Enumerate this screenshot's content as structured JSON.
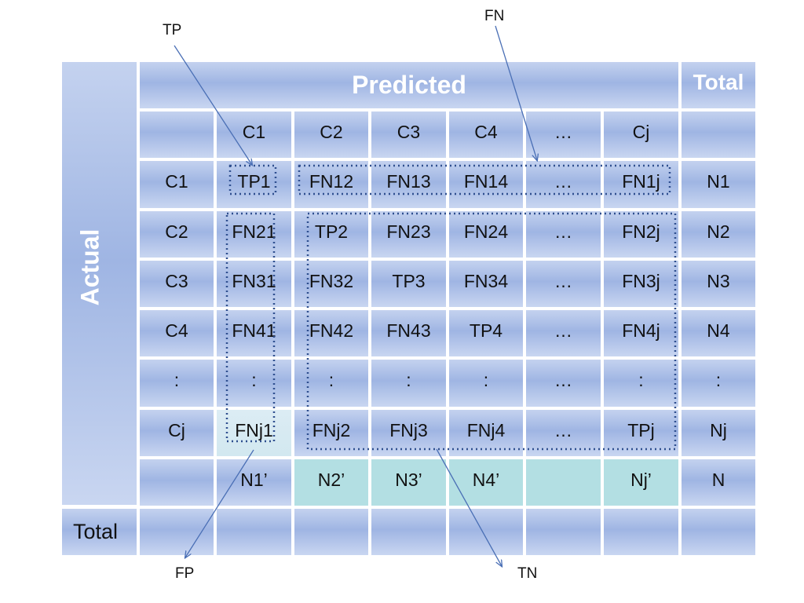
{
  "headers": {
    "predicted": "Predicted",
    "actual": "Actual",
    "total_col": "Total",
    "total_row": "Total"
  },
  "columns": [
    "C1",
    "C2",
    "C3",
    "C4",
    "…",
    "Cj"
  ],
  "rows": [
    {
      "label": "C1",
      "cells": [
        "TP1",
        "FN12",
        "FN13",
        "FN14",
        "…",
        "FN1j"
      ],
      "total": "N1"
    },
    {
      "label": "C2",
      "cells": [
        "FN21",
        "TP2",
        "FN23",
        "FN24",
        "…",
        "FN2j"
      ],
      "total": "N2"
    },
    {
      "label": "C3",
      "cells": [
        "FN31",
        "FN32",
        "TP3",
        "FN34",
        "…",
        "FN3j"
      ],
      "total": "N3"
    },
    {
      "label": "C4",
      "cells": [
        "FN41",
        "FN42",
        "FN43",
        "TP4",
        "…",
        "FN4j"
      ],
      "total": "N4"
    },
    {
      "label": ":",
      "cells": [
        ":",
        ":",
        ":",
        ":",
        "…",
        ":"
      ],
      "total": ":"
    },
    {
      "label": "Cj",
      "cells": [
        "FNj1",
        "FNj2",
        "FNj3",
        "FNj4",
        "…",
        "TPj"
      ],
      "total": "Nj"
    }
  ],
  "column_totals": {
    "cells": [
      "N1’",
      "N2’",
      "N3’",
      "N4’",
      "",
      "Nj’"
    ],
    "grand_total": "N"
  },
  "callouts": {
    "tp": "TP",
    "fn": "FN",
    "fp": "FP",
    "tn": "TN"
  },
  "colors": {
    "cell_blue": "#a9bde6",
    "cell_light": "#d6ebf2",
    "cell_teal": "#b3dfe3",
    "callout_line": "#4a6fb5",
    "dotted_box": "#2f4f8f"
  }
}
